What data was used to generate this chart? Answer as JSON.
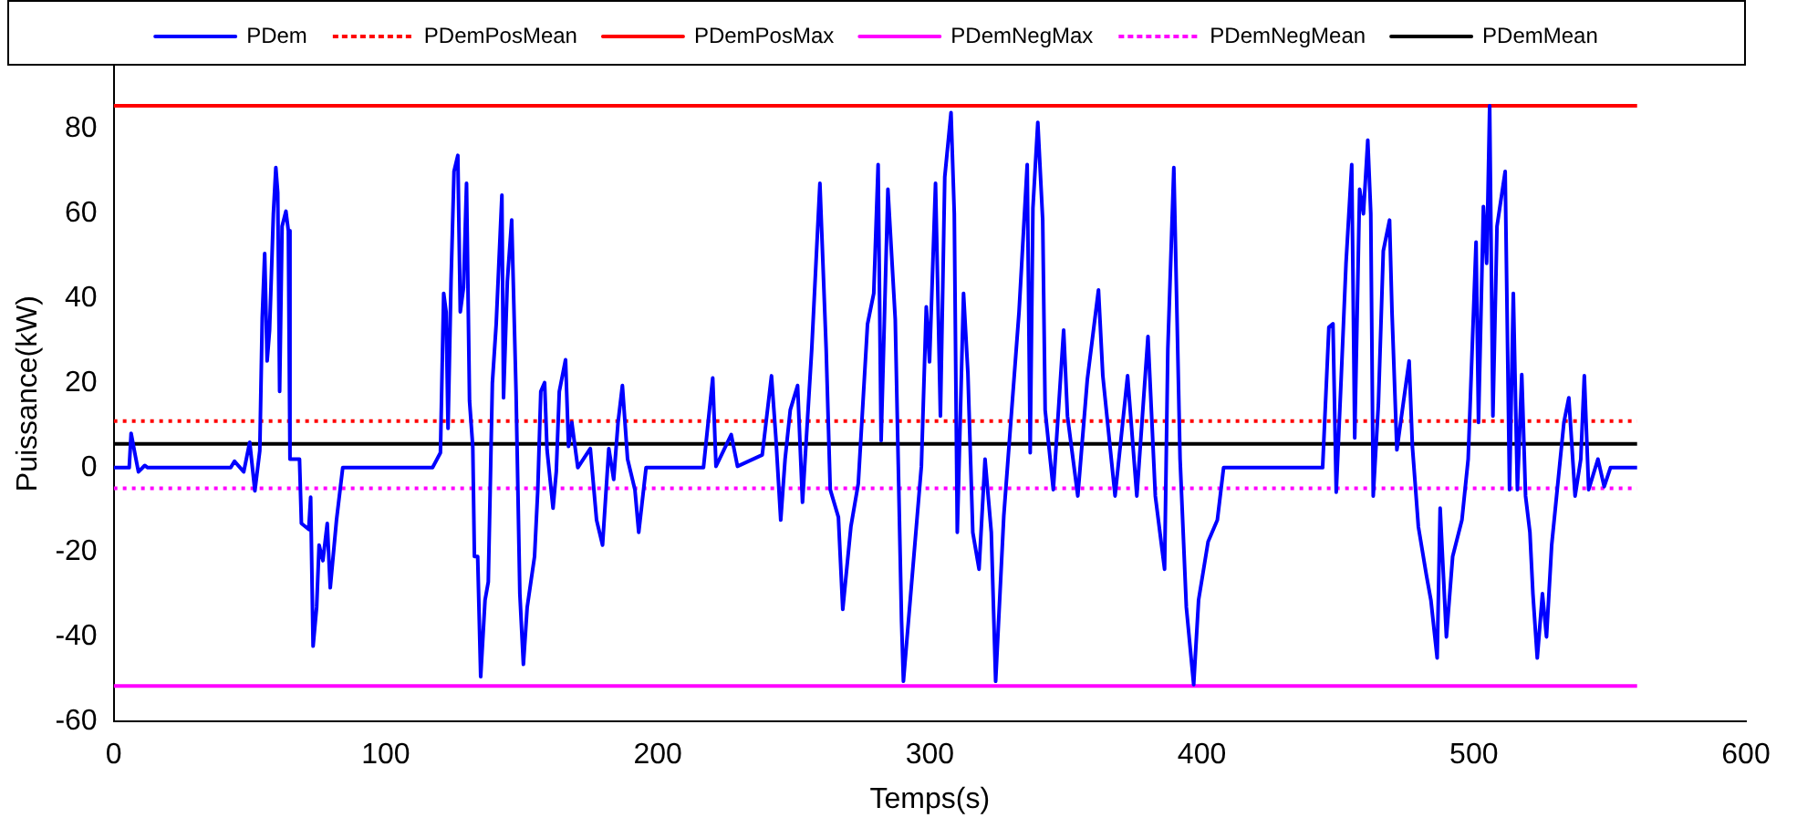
{
  "chart_data": {
    "type": "line",
    "xlabel": "Temps(s)",
    "ylabel": "Puissance(kW)",
    "xlim": [
      0,
      600
    ],
    "xticks": [
      0,
      100,
      200,
      300,
      400,
      500,
      600
    ],
    "ylim": [
      -60,
      95
    ],
    "yticks": [
      -60,
      -40,
      -20,
      0,
      20,
      40,
      60,
      80
    ],
    "legend": "top",
    "grid": false,
    "marker": "none",
    "series": [
      {
        "name": "PDem",
        "color": "#0000ff",
        "line_style": "solid",
        "x": [
          0,
          5.7,
          6.4,
          8,
          9.1,
          11.4,
          12.5,
          43,
          44.4,
          47.8,
          50,
          51.9,
          53.7,
          54.6,
          55.5,
          56.4,
          57.3,
          58.7,
          59.6,
          60.3,
          61,
          61.9,
          63.3,
          64.2,
          64.8,
          68.3,
          69,
          71.7,
          72.4,
          73.3,
          74.6,
          75.5,
          76.9,
          78.5,
          79.6,
          81.9,
          84.2,
          117.2,
          120.1,
          121.3,
          122.2,
          122.9,
          124,
          125.1,
          126.5,
          127.4,
          128.6,
          129.7,
          130.8,
          132,
          132.6,
          133.8,
          134.9,
          136.5,
          137.7,
          139.2,
          140.6,
          142.7,
          143.3,
          144.7,
          146.3,
          147.9,
          149.3,
          150.6,
          152,
          154.7,
          155.9,
          157,
          158.4,
          159.3,
          161.5,
          162.7,
          163.8,
          166.1,
          167.2,
          168.4,
          170.6,
          175.2,
          177.5,
          179.7,
          182,
          183.8,
          185.4,
          187,
          188.9,
          191.6,
          193,
          195.7,
          216.8,
          220.2,
          221.4,
          227,
          229.3,
          238.4,
          241.8,
          243.4,
          245.2,
          246.8,
          248.7,
          251.4,
          253.2,
          256.6,
          259.6,
          261.9,
          263.4,
          266.4,
          268,
          271,
          273.7,
          277.1,
          279.4,
          281,
          282.1,
          284.6,
          287.3,
          289.6,
          290.3,
          296.9,
          298.7,
          299.9,
          302.1,
          303.9,
          305.5,
          307.8,
          309,
          310.1,
          312.4,
          314,
          315.8,
          318.1,
          320.3,
          322.6,
          324.2,
          327.2,
          330.1,
          332.8,
          335.8,
          336.9,
          337.9,
          339.7,
          341.5,
          342.4,
          345.4,
          349.2,
          350.6,
          354.4,
          357.9,
          362,
          363.6,
          368.1,
          372.7,
          376.1,
          380.2,
          382.9,
          386.3,
          387.5,
          389.7,
          392,
          394.3,
          397,
          398.8,
          402.3,
          405.7,
          408,
          444.4,
          446.7,
          448.2,
          449.4,
          451.2,
          453,
          455.1,
          456.2,
          458,
          459.4,
          461,
          462.1,
          463,
          464.9,
          466.7,
          469,
          469.9,
          471.7,
          474,
          476.2,
          477.4,
          479.6,
          482.6,
          484.2,
          486.5,
          487.6,
          489.9,
          492.2,
          495.6,
          497.9,
          500.8,
          501.7,
          503.5,
          504.7,
          505.8,
          507,
          508.5,
          511.5,
          513.1,
          514.5,
          516,
          517.6,
          519,
          520.6,
          521.7,
          523.3,
          525.2,
          526.7,
          528.6,
          531.3,
          533.1,
          534.9,
          537.2,
          539.3,
          540.6,
          542.2,
          545.6,
          547.9,
          550.2,
          560
        ],
        "values": [
          0,
          0,
          8.1,
          2.6,
          -1,
          0.5,
          0,
          0,
          1.5,
          -1,
          6,
          -5.5,
          4,
          35.4,
          50.6,
          25.2,
          32.5,
          60,
          70.9,
          65,
          18,
          57,
          60.6,
          56,
          2,
          2,
          -13.2,
          -14.6,
          -7,
          -42.2,
          -33,
          -18.3,
          -22,
          -13.2,
          -28.4,
          -12.4,
          0,
          0,
          3.5,
          41.2,
          36.8,
          9.3,
          44,
          70,
          73.8,
          36.8,
          42.6,
          67.2,
          15.8,
          4.9,
          -21,
          -21,
          -49.4,
          -31.3,
          -27,
          20,
          33.9,
          64.4,
          16.5,
          44,
          58.5,
          18,
          -29.8,
          -46.5,
          -33,
          -21,
          -5.2,
          18,
          20.1,
          4.2,
          -9.6,
          -0.9,
          18,
          25.5,
          5,
          10.7,
          0,
          4.5,
          -12.4,
          -18.3,
          4.5,
          -2.8,
          10.7,
          19.4,
          2,
          -5.2,
          -15.3,
          0,
          0,
          21.2,
          0.3,
          7.8,
          0.3,
          3,
          21.7,
          7.2,
          -12.4,
          2,
          13.6,
          19.4,
          -8.2,
          28,
          67.2,
          28,
          -5.2,
          -11.7,
          -33.5,
          -13.9,
          -3.8,
          33.9,
          41.2,
          71.6,
          6.4,
          65.8,
          35,
          -36,
          -50.5,
          0.3,
          38,
          25,
          67.2,
          12.2,
          68.7,
          83.9,
          60,
          -15.3,
          41.2,
          22.4,
          -15.3,
          -24,
          2,
          -15.3,
          -50.5,
          -11.4,
          13.6,
          36.8,
          71.6,
          3.5,
          61.3,
          81.6,
          58.5,
          13.6,
          -5.2,
          32.5,
          12.2,
          -6.7,
          20.8,
          42,
          21.7,
          -6.7,
          21.7,
          -6.7,
          31,
          -6.7,
          -24,
          28,
          70.9,
          2,
          -33,
          -51.3,
          -31.3,
          -17.5,
          -12.4,
          0,
          0,
          33.2,
          34,
          -5.8,
          20.8,
          48.3,
          71.6,
          7,
          65.8,
          60,
          77.4,
          60,
          -6.7,
          15,
          51.2,
          58.5,
          36.8,
          4.2,
          15,
          25.2,
          5,
          -14,
          -25.6,
          -31.3,
          -45,
          -9.6,
          -40,
          -21,
          -12.4,
          2,
          53.3,
          10.7,
          61.7,
          48.3,
          85.5,
          12.2,
          57,
          70,
          -5.2,
          41.2,
          -5.2,
          22,
          -6.7,
          -15.3,
          -29.8,
          -45,
          -29.8,
          -40,
          -18.3,
          -0.9,
          10.7,
          16.5,
          -6.7,
          2,
          21.7,
          -5.2,
          2,
          -4.5,
          0,
          0
        ]
      },
      {
        "name": "PDemPosMean",
        "color": "#ff0000",
        "line_style": "dotted",
        "x": [
          0,
          560
        ],
        "values": [
          11,
          11
        ]
      },
      {
        "name": "PDemPosMax",
        "color": "#ff0000",
        "line_style": "solid",
        "x": [
          0,
          560
        ],
        "values": [
          85.5,
          85.5
        ]
      },
      {
        "name": "PDemNegMax",
        "color": "#ff00ff",
        "line_style": "solid",
        "x": [
          0,
          560
        ],
        "values": [
          -51.6,
          -51.6
        ]
      },
      {
        "name": "PDemNegMean",
        "color": "#ff00ff",
        "line_style": "dotted",
        "x": [
          0,
          560
        ],
        "values": [
          -4.9,
          -4.9
        ]
      },
      {
        "name": "PDemMean",
        "color": "#000000",
        "line_style": "solid",
        "x": [
          0,
          560
        ],
        "values": [
          5.6,
          5.6
        ]
      }
    ]
  }
}
